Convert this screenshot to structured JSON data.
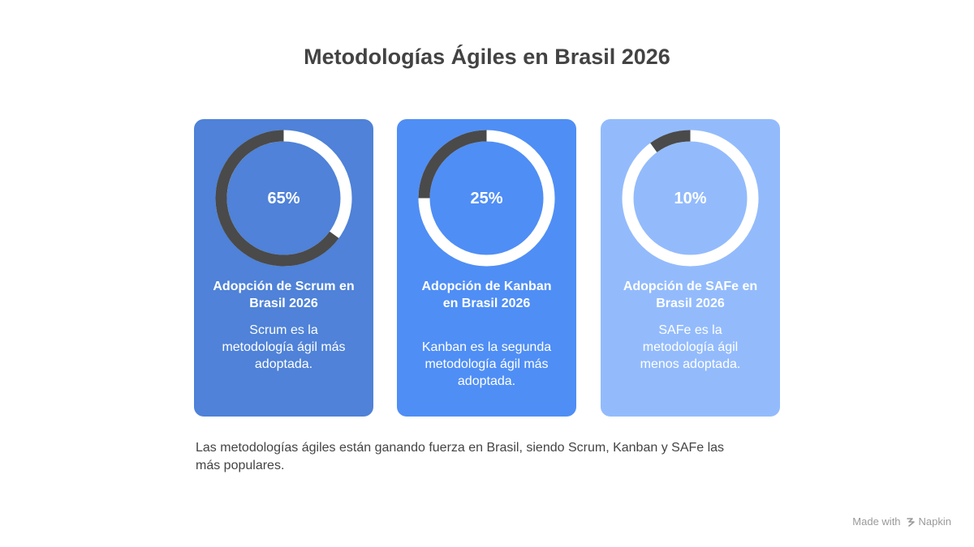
{
  "page": {
    "title": "Metodologías Ágiles en Brasil 2026",
    "summary": "Las metodologías ágiles están ganando fuerza en Brasil, siendo Scrum, Kanban y SAFe las más populares.",
    "footer": {
      "prefix": "Made with",
      "brand": "Napkin",
      "icon": "napkin-logo-icon"
    }
  },
  "colors": {
    "ring_value": "#4a4a4a",
    "ring_rest": "#ffffff",
    "text": "#ffffff"
  },
  "chart_data": [
    {
      "type": "pie",
      "variant": "donut",
      "value": 65,
      "label": "65%",
      "title": "Adopción de Scrum en Brasil 2026",
      "description": "Scrum es la metodología ágil más adoptada.",
      "card_color": "#4f82d8"
    },
    {
      "type": "pie",
      "variant": "donut",
      "value": 25,
      "label": "25%",
      "title": "Adopción de Kanban en Brasil 2026",
      "description": "Kanban es la segunda metodología ágil más adoptada.",
      "card_color": "#4f8ef5"
    },
    {
      "type": "pie",
      "variant": "donut",
      "value": 10,
      "label": "10%",
      "title": "Adopción de SAFe en Brasil 2026",
      "description": "SAFe es la metodología ágil menos adoptada.",
      "card_color": "#93bbfc"
    }
  ]
}
